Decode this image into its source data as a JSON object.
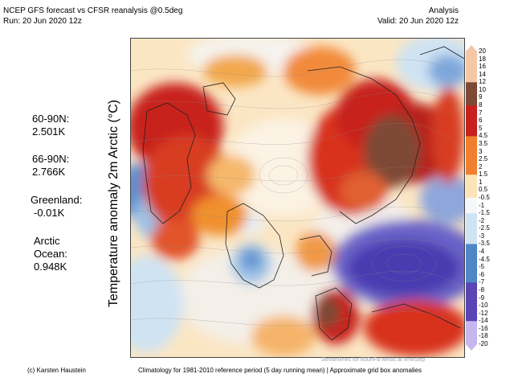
{
  "header": {
    "title": "NCEP GFS forecast vs CFSR reanalysis @0.5deg",
    "run": "Run: 20 Jun 2020 12z",
    "mode": "Analysis",
    "valid": "Valid: 20 Jun 2020 12z"
  },
  "stats": {
    "lat60_label": "60-90N:",
    "lat60_value": "2.501K",
    "lat66_label": "66-90N:",
    "lat66_value": "2.766K",
    "greenland_label": "Greenland:",
    "greenland_value": "-0.01K",
    "arctic_label_1": "Arctic",
    "arctic_label_2": "Ocean:",
    "arctic_value": "0.948K"
  },
  "map": {
    "vertical_label": "Temperature anomaly 2m Arctic (°C)",
    "streamlines_note": "Streamlines for 850hPa winds at timestep"
  },
  "colorbar": {
    "ticks": [
      "20",
      "18",
      "16",
      "14",
      "12",
      "10",
      "9",
      "8",
      "7",
      "6",
      "5",
      "4.5",
      "3.5",
      "3",
      "2.5",
      "2",
      "1.5",
      "1",
      "0.5",
      "-0.5",
      "-1",
      "-1.5",
      "-2",
      "-2.5",
      "-3",
      "-3.5",
      "-4",
      "-4.5",
      "-5",
      "-6",
      "-7",
      "-8",
      "-9",
      "-10",
      "-12",
      "-14",
      "-16",
      "-18",
      "-20"
    ],
    "colors": {
      "max": "#f4c7a6",
      "brown": "#7d4a36",
      "red": "#c8201e",
      "orange": "#f0802e",
      "light": "#fbe4b8",
      "white": "#f5f7fa",
      "lightblue": "#cfe3f3",
      "blue": "#4f86c6",
      "purple": "#5a45b4",
      "min": "#c6b7ef"
    }
  },
  "footer": {
    "credit": "(c) Karsten Haustein",
    "climatology": "Climatology for 1981-2010 reference period (5 day running mean) | Approximate grid box anomalies"
  }
}
